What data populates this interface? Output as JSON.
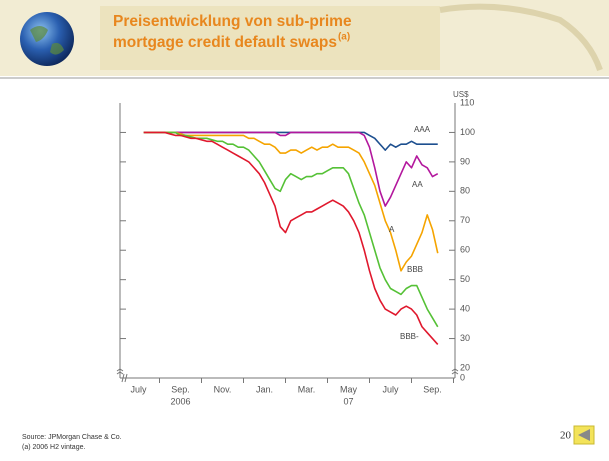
{
  "chart_data": {
    "type": "line",
    "title_lines": [
      "Preisentwicklung von sub-prime",
      "mortgage credit default swaps"
    ],
    "title_superscript": "(a)",
    "y_unit": "US$",
    "categories": [
      null,
      null,
      "July",
      null,
      null,
      null,
      null,
      null,
      null,
      null,
      "Sep.",
      null,
      null,
      null,
      null,
      null,
      null,
      null,
      "Nov.",
      null,
      null,
      null,
      null,
      null,
      null,
      null,
      "Jan.",
      null,
      null,
      null,
      null,
      null,
      null,
      null,
      "Mar.",
      null,
      null,
      null,
      null,
      null,
      null,
      null,
      "May",
      null,
      null,
      null,
      null,
      null,
      null,
      null,
      "July",
      null,
      null,
      null,
      null,
      null,
      null,
      null,
      "Sep.",
      null
    ],
    "x_sublabels": [
      null,
      null,
      null,
      null,
      null,
      null,
      null,
      null,
      null,
      null,
      "2006",
      null,
      null,
      null,
      null,
      null,
      null,
      null,
      null,
      null,
      null,
      null,
      null,
      null,
      null,
      null,
      null,
      null,
      null,
      null,
      null,
      null,
      null,
      null,
      null,
      null,
      null,
      null,
      null,
      null,
      null,
      null,
      "07",
      null,
      null,
      null,
      null,
      null,
      null,
      null,
      null,
      null,
      null,
      null,
      null,
      null,
      null,
      null,
      null,
      null
    ],
    "series": [
      {
        "name": "AAA",
        "color": "#1d4f8f",
        "values": [
          null,
          null,
          null,
          100,
          100,
          100,
          100,
          100,
          100,
          100,
          100,
          100,
          100,
          100,
          100,
          100,
          100,
          100,
          100,
          100,
          100,
          100,
          100,
          100,
          100,
          100,
          100,
          100,
          100,
          100,
          100,
          100,
          100,
          100,
          100,
          100,
          100,
          100,
          100,
          100,
          100,
          100,
          100,
          100,
          100,
          100,
          99,
          98,
          96,
          94,
          96,
          95,
          96,
          96,
          97,
          96,
          96,
          96,
          96,
          96
        ]
      },
      {
        "name": "AA",
        "color": "#b3179d",
        "values": [
          null,
          null,
          null,
          100,
          100,
          100,
          100,
          100,
          100,
          100,
          100,
          100,
          100,
          100,
          100,
          100,
          100,
          100,
          100,
          100,
          100,
          100,
          100,
          100,
          100,
          100,
          100,
          100,
          100,
          99,
          99,
          100,
          100,
          100,
          100,
          100,
          100,
          100,
          100,
          100,
          100,
          100,
          100,
          100,
          100,
          99,
          95,
          88,
          80,
          75,
          78,
          82,
          86,
          90,
          88,
          92,
          89,
          88,
          85,
          86
        ]
      },
      {
        "name": "A",
        "color": "#f5a400",
        "values": [
          null,
          null,
          null,
          100,
          100,
          100,
          100,
          100,
          100,
          100,
          99.5,
          99,
          99,
          99,
          99,
          99,
          99,
          99,
          99,
          99,
          99,
          99,
          99,
          98,
          98,
          97,
          96,
          96,
          95,
          93,
          93,
          94,
          94,
          93,
          94,
          95,
          94,
          95,
          95,
          96,
          95,
          95,
          95,
          94,
          93,
          90,
          86,
          82,
          76,
          70,
          66,
          60,
          53,
          56,
          58,
          62,
          66,
          72,
          67,
          59
        ]
      },
      {
        "name": "BBB",
        "color": "#55c136",
        "values": [
          null,
          null,
          null,
          100,
          100,
          100,
          100,
          100,
          100,
          100,
          99,
          99,
          98.5,
          98,
          98,
          98,
          97.5,
          97,
          97,
          96,
          96,
          95,
          95,
          94,
          92,
          90,
          87,
          84,
          81,
          80,
          84,
          86,
          85,
          84,
          85,
          85,
          86,
          86,
          87,
          88,
          88,
          88,
          86,
          81,
          76,
          72,
          66,
          60,
          54,
          50,
          47,
          46,
          45,
          47,
          48,
          48,
          44,
          40,
          37,
          34
        ]
      },
      {
        "name": "BBB-",
        "color": "#e0182d",
        "values": [
          null,
          null,
          null,
          100,
          100,
          100,
          100,
          100,
          99.5,
          99,
          99,
          98.5,
          98,
          98,
          97.5,
          97,
          97,
          96,
          95,
          94,
          93,
          92,
          91,
          90,
          88,
          86,
          83,
          79,
          75,
          68,
          66,
          70,
          71,
          72,
          73,
          73,
          74,
          75,
          76,
          77,
          76,
          75,
          73,
          70,
          66,
          60,
          53,
          47,
          43,
          40,
          39,
          38,
          40,
          41,
          40,
          38,
          34,
          32,
          30,
          28
        ]
      }
    ],
    "ylim": [
      0,
      110
    ],
    "yticks": [
      0,
      20,
      30,
      40,
      50,
      60,
      70,
      80,
      90,
      100,
      110
    ],
    "axis_break": true,
    "source": "Source:  JPMorgan Chase & Co.",
    "footnote": "(a)  2006 H2 vintage.",
    "page_number": "20"
  }
}
